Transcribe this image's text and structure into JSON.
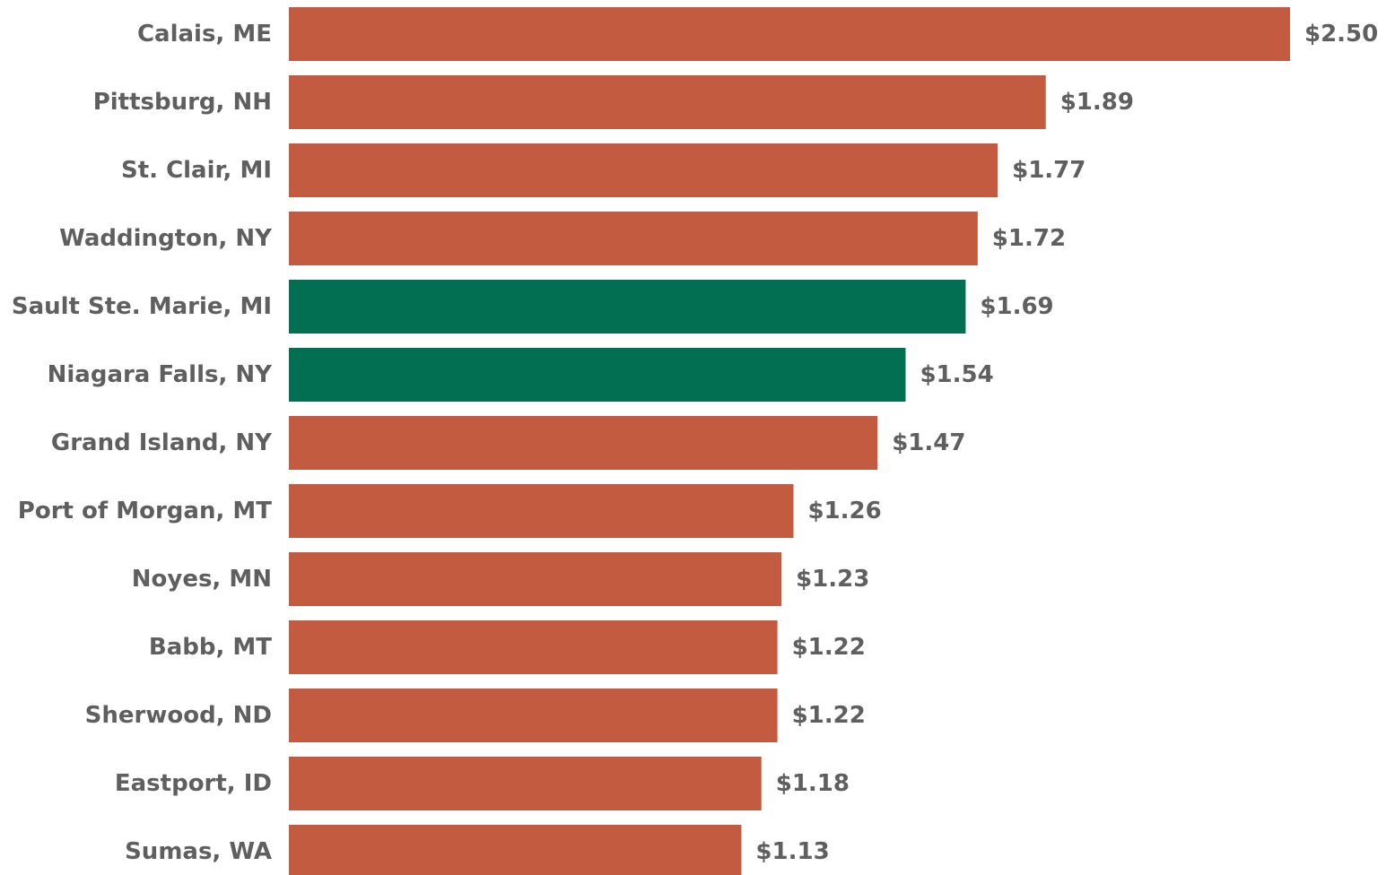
{
  "chart_data": {
    "type": "bar",
    "orientation": "horizontal",
    "title": "",
    "xlabel": "",
    "ylabel": "",
    "xlim": [
      0,
      2.5
    ],
    "grid": false,
    "legend": "none",
    "categories": [
      "Calais, ME",
      "Pittsburg, NH",
      "St. Clair, MI",
      "Waddington, NY",
      "Sault Ste. Marie, MI",
      "Niagara Falls, NY",
      "Grand Island, NY",
      "Port of Morgan, MT",
      "Noyes, MN",
      "Babb, MT",
      "Sherwood, ND",
      "Eastport, ID",
      "Sumas, WA"
    ],
    "values": [
      2.5,
      1.89,
      1.77,
      1.72,
      1.69,
      1.54,
      1.47,
      1.26,
      1.23,
      1.22,
      1.22,
      1.18,
      1.13
    ],
    "value_labels": [
      "$2.50",
      "$1.89",
      "$1.77",
      "$1.72",
      "$1.69",
      "$1.54",
      "$1.47",
      "$1.26",
      "$1.23",
      "$1.22",
      "$1.22",
      "$1.18",
      "$1.13"
    ],
    "highlighted": [
      false,
      false,
      false,
      false,
      true,
      true,
      false,
      false,
      false,
      false,
      false,
      false,
      false
    ],
    "colors": {
      "default_bar": "#C25B3F",
      "highlight_bar": "#026F53",
      "text": "#5F5F5F"
    }
  }
}
